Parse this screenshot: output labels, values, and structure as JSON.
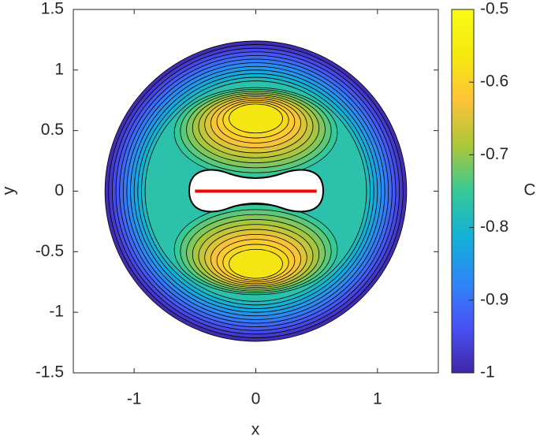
{
  "chart_data": {
    "type": "contour",
    "xlabel": "x",
    "ylabel": "y",
    "colorbar_label": "C",
    "xlim": [
      -1.5,
      1.5
    ],
    "ylim": [
      -1.5,
      1.5
    ],
    "xticks": [
      -1,
      0,
      1
    ],
    "yticks": [
      -1.5,
      -1,
      -0.5,
      0,
      0.5,
      1,
      1.5
    ],
    "clim": [
      -1,
      -0.5
    ],
    "cticks": [
      -1,
      -0.9,
      -0.8,
      -0.7,
      -0.6,
      -0.5
    ],
    "colormap": "parula",
    "grid": false,
    "levels": [
      -1,
      -0.98,
      -0.96,
      -0.94,
      -0.92,
      -0.9,
      -0.88,
      -0.86,
      -0.84,
      -0.82,
      -0.8,
      -0.78,
      -0.76,
      -0.74,
      -0.72,
      -0.7,
      -0.68,
      -0.66,
      -0.64,
      -0.62,
      -0.6,
      -0.58
    ],
    "segment": {
      "x": [
        -0.5,
        0.5
      ],
      "y": [
        0,
        0
      ],
      "color": "#ff0000"
    }
  }
}
